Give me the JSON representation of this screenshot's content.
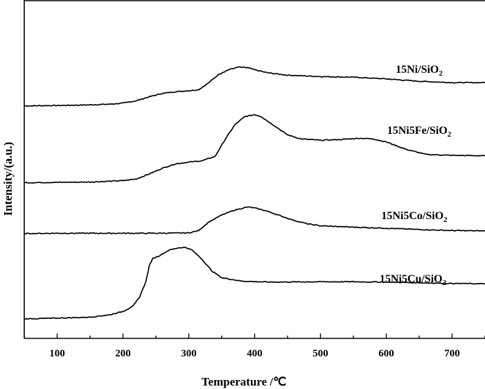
{
  "chart_data": {
    "type": "line",
    "title": "",
    "xlabel": "Temperature /℃",
    "ylabel": "Intensity/(a.u.)",
    "xlim": [
      50,
      750
    ],
    "ylim": [
      0,
      1
    ],
    "grid": false,
    "legend": "none",
    "y_ticks_labeled": false,
    "x_ticks": [
      100,
      200,
      300,
      400,
      500,
      600,
      700
    ],
    "series": [
      {
        "name": "15Ni/SiO2",
        "label_main": "15Ni/SiO",
        "label_sub": "2",
        "x": [
          50,
          100,
          150,
          180,
          200,
          220,
          240,
          260,
          280,
          300,
          315,
          330,
          345,
          360,
          375,
          390,
          400,
          420,
          450,
          500,
          550,
          600,
          650,
          700,
          750
        ],
        "y": [
          0.69,
          0.691,
          0.693,
          0.695,
          0.698,
          0.705,
          0.717,
          0.727,
          0.732,
          0.735,
          0.738,
          0.758,
          0.783,
          0.797,
          0.805,
          0.803,
          0.797,
          0.788,
          0.781,
          0.777,
          0.775,
          0.77,
          0.763,
          0.759,
          0.759
        ]
      },
      {
        "name": "15Ni5Fe/SiO2",
        "label_main": "15Ni5Fe/SiO",
        "label_sub": "2",
        "x": [
          50,
          100,
          150,
          200,
          220,
          240,
          260,
          280,
          300,
          320,
          340,
          355,
          370,
          385,
          400,
          410,
          430,
          450,
          470,
          500,
          530,
          560,
          580,
          600,
          630,
          660,
          700,
          750
        ],
        "y": [
          0.462,
          0.463,
          0.464,
          0.468,
          0.473,
          0.488,
          0.505,
          0.518,
          0.523,
          0.527,
          0.54,
          0.59,
          0.634,
          0.658,
          0.664,
          0.658,
          0.631,
          0.604,
          0.592,
          0.588,
          0.59,
          0.594,
          0.592,
          0.583,
          0.561,
          0.546,
          0.543,
          0.542
        ]
      },
      {
        "name": "15Ni5Co/SiO2",
        "label_main": "15Ni5Co/SiO",
        "label_sub": "2",
        "x": [
          50,
          100,
          150,
          200,
          250,
          300,
          315,
          330,
          350,
          370,
          390,
          400,
          420,
          440,
          460,
          480,
          500,
          550,
          600,
          650,
          700,
          750
        ],
        "y": [
          0.311,
          0.312,
          0.312,
          0.312,
          0.312,
          0.313,
          0.32,
          0.345,
          0.366,
          0.381,
          0.39,
          0.387,
          0.377,
          0.363,
          0.35,
          0.34,
          0.334,
          0.33,
          0.327,
          0.323,
          0.32,
          0.319
        ]
      },
      {
        "name": "15Ni5Cu/SiO2",
        "label_main": "15Ni5Cu/SiO",
        "label_sub": "2",
        "x": [
          50,
          100,
          150,
          180,
          200,
          215,
          225,
          235,
          240,
          245,
          255,
          270,
          285,
          295,
          305,
          320,
          335,
          350,
          380,
          420,
          500,
          550,
          600,
          650,
          700,
          750
        ],
        "y": [
          0.058,
          0.06,
          0.063,
          0.07,
          0.08,
          0.095,
          0.122,
          0.17,
          0.215,
          0.237,
          0.245,
          0.262,
          0.269,
          0.27,
          0.262,
          0.235,
          0.2,
          0.18,
          0.17,
          0.167,
          0.168,
          0.168,
          0.167,
          0.165,
          0.163,
          0.162
        ]
      }
    ]
  }
}
